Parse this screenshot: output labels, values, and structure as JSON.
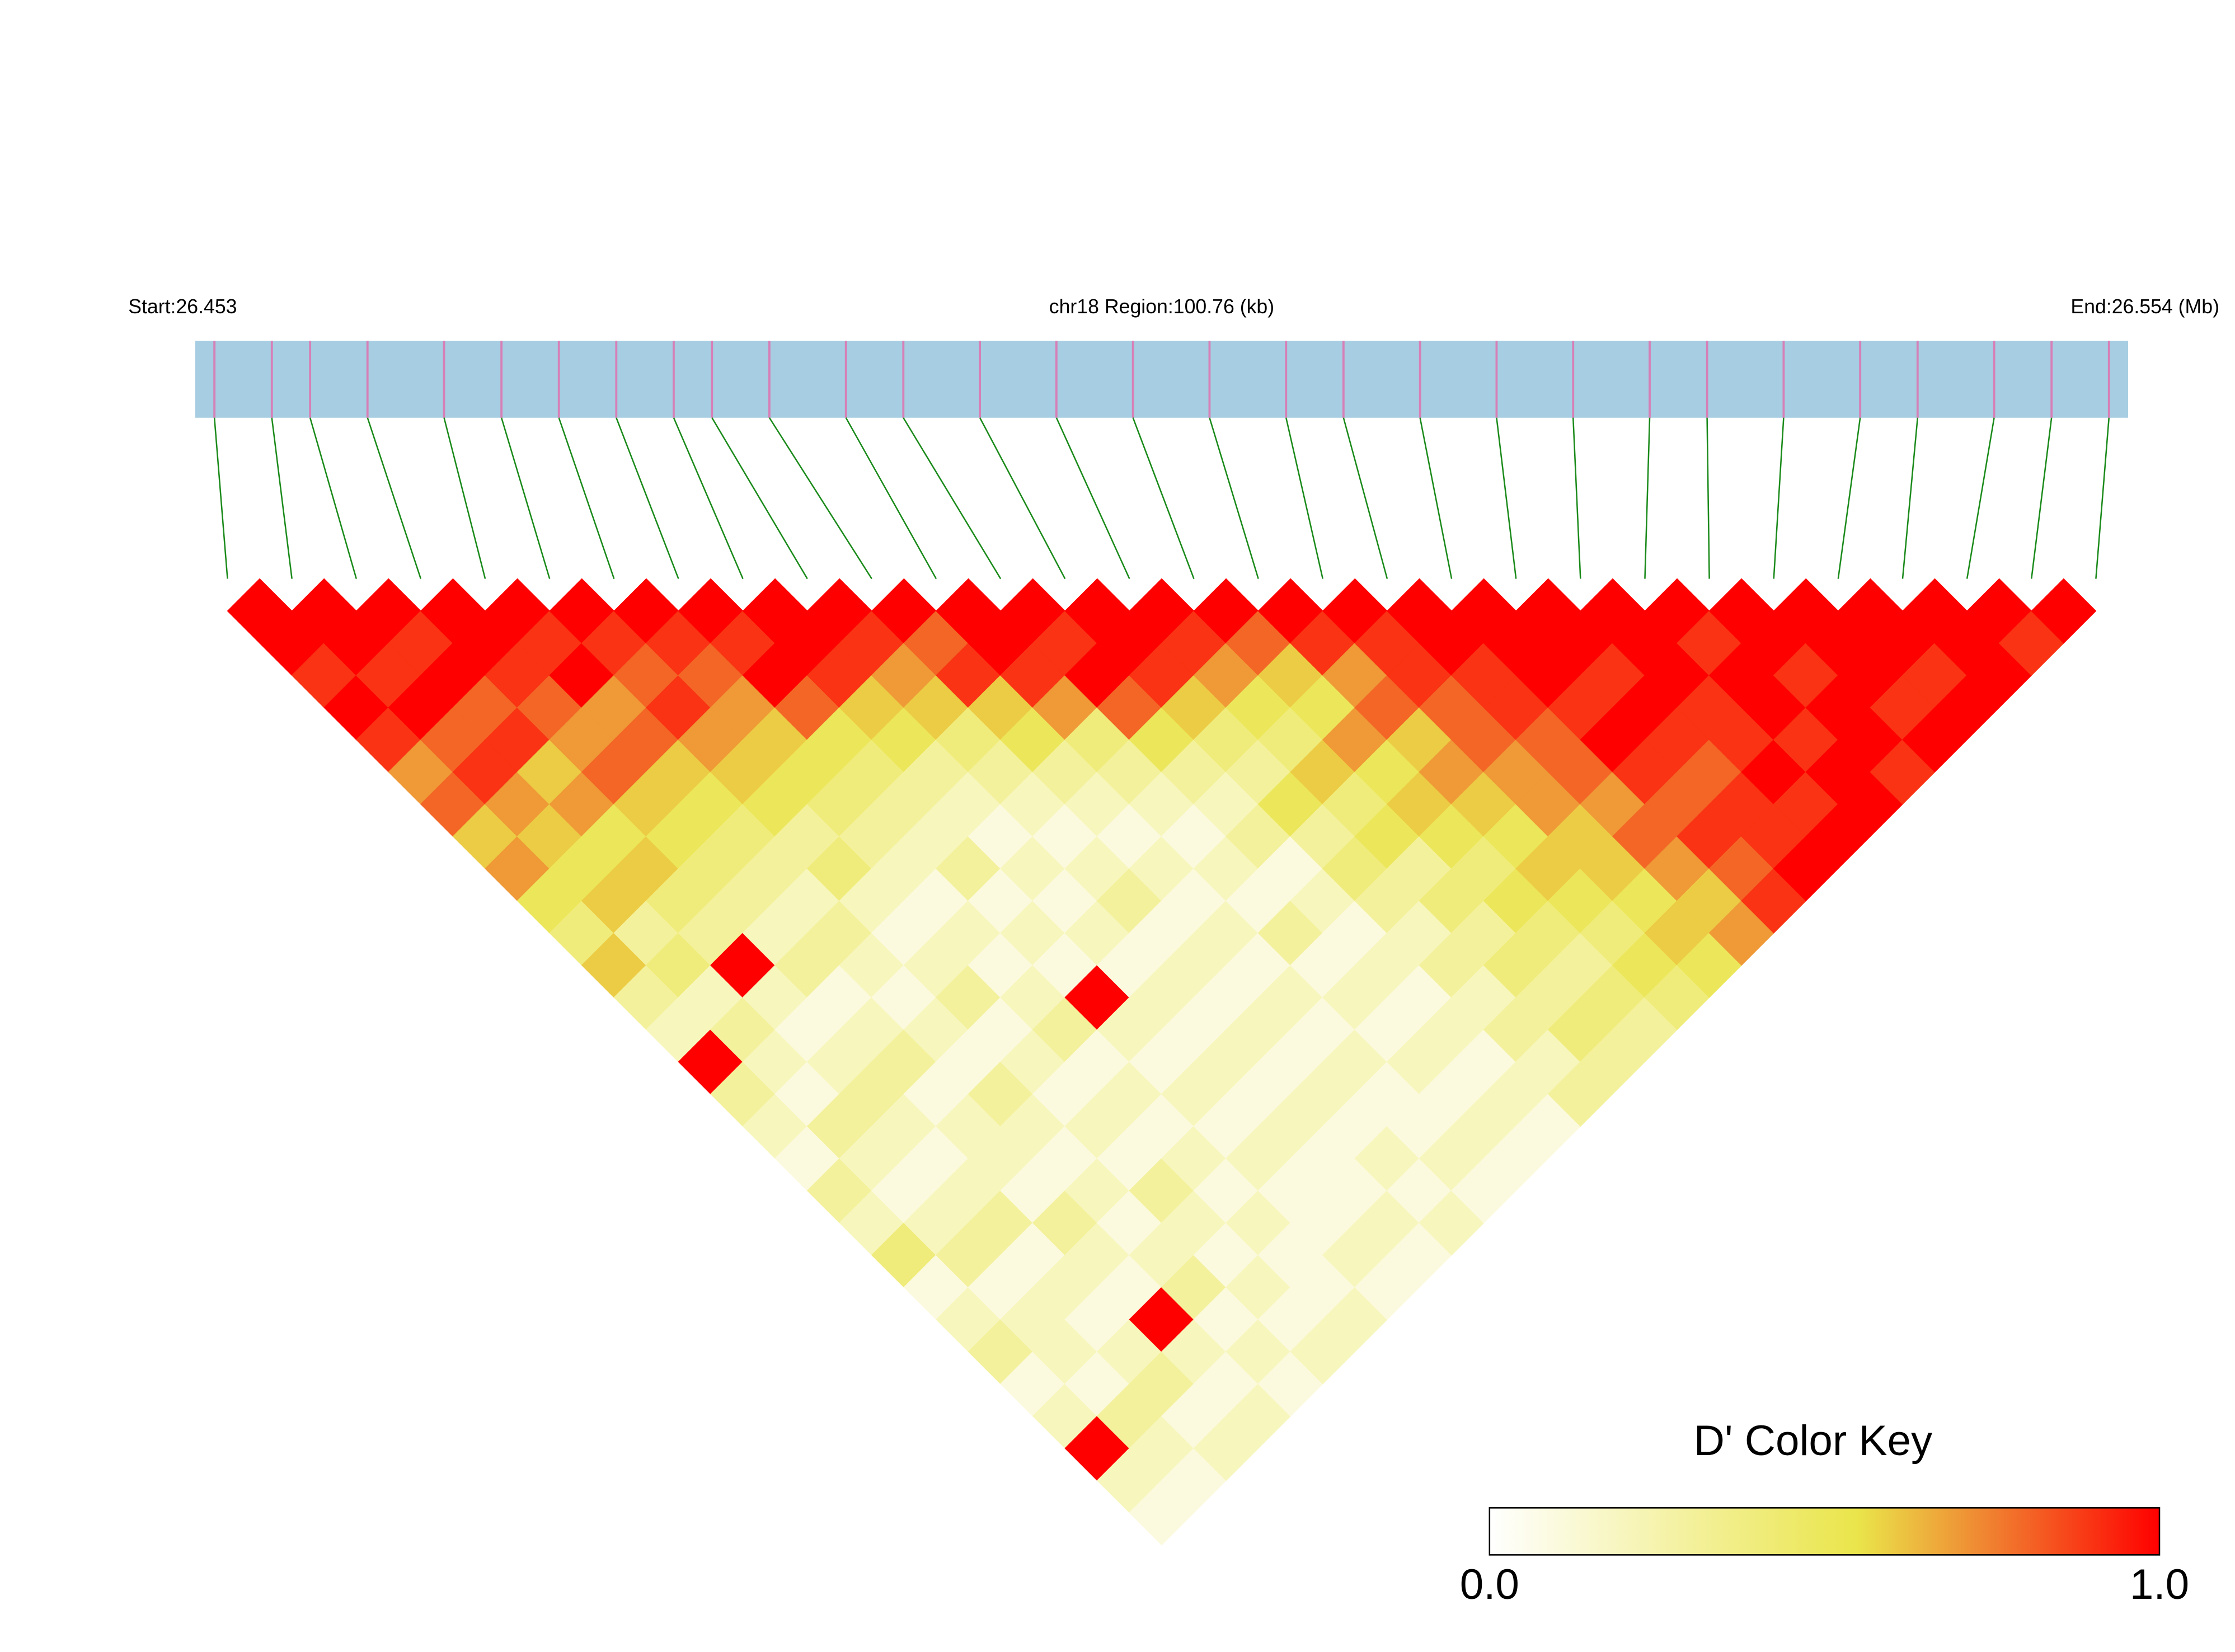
{
  "chart_data": {
    "type": "ld-heatmap",
    "start_label": "Start:26.453",
    "region_label": "chr18 Region:100.76 (kb)",
    "end_label": "End:26.554 (Mb)",
    "xlim": [
      26.453,
      26.554
    ],
    "snp_positions": [
      26.454,
      26.457,
      26.459,
      26.462,
      26.466,
      26.469,
      26.472,
      26.475,
      26.478,
      26.48,
      26.483,
      26.487,
      26.49,
      26.494,
      26.498,
      26.502,
      26.506,
      26.51,
      26.513,
      26.517,
      26.521,
      26.525,
      26.529,
      26.532,
      26.536,
      26.54,
      26.543,
      26.547,
      26.55,
      26.553
    ],
    "bar_color": "#a6cde1",
    "marker_color": "#d77fb7",
    "link_color": "#1a8a1a",
    "ld_matrix": [
      [
        1,
        1,
        0.9,
        1,
        0.9,
        0.7,
        0.8,
        0.6,
        0.7,
        0.5,
        0.4,
        0.6,
        0.3,
        0.2,
        1,
        0.3,
        0.2,
        0.1,
        0.3,
        0.2,
        0.4,
        0.1,
        0.2,
        0.3,
        0.1,
        0.2,
        1,
        0.2,
        0.1
      ],
      [
        1,
        1,
        0.9,
        1,
        0.8,
        0.9,
        0.7,
        0.6,
        0.5,
        0.6,
        0.3,
        0.4,
        0.2,
        0.3,
        0.2,
        0.1,
        0.3,
        0.2,
        0.1,
        0.2,
        0.3,
        0.1,
        0.2,
        0.2,
        0.1,
        0.3,
        0.2,
        0.1
      ],
      [
        1,
        0.9,
        1,
        0.8,
        0.9,
        0.6,
        0.7,
        0.5,
        0.6,
        0.4,
        0.3,
        1,
        0.2,
        0.1,
        0.2,
        0.3,
        0.2,
        0.1,
        0.2,
        0.3,
        0.1,
        0.2,
        0.1,
        0.2,
        0.3,
        0.1,
        0.2
      ],
      [
        1,
        1,
        0.9,
        0.8,
        0.7,
        0.8,
        0.6,
        0.5,
        0.4,
        0.3,
        0.2,
        0.3,
        0.1,
        0.2,
        0.3,
        0.1,
        0.2,
        0.2,
        0.1,
        0.3,
        0.2,
        0.1,
        1,
        0.2,
        0.1,
        0.2
      ],
      [
        1,
        0.9,
        1,
        0.7,
        0.8,
        0.6,
        0.5,
        0.4,
        0.3,
        0.2,
        0.3,
        0.2,
        0.1,
        0.2,
        0.1,
        0.3,
        0.2,
        0.1,
        0.2,
        0.1,
        0.2,
        0.3,
        0.1,
        0.2,
        0.1
      ],
      [
        1,
        0.9,
        0.8,
        0.9,
        0.7,
        0.6,
        0.5,
        0.3,
        0.4,
        0.2,
        0.1,
        0.2,
        0.3,
        0.1,
        0.2,
        0.1,
        0.2,
        0.1,
        0.3,
        0.2,
        0.1,
        0.2,
        0.1,
        0.2
      ],
      [
        1,
        0.9,
        0.8,
        0.7,
        0.6,
        0.5,
        0.4,
        0.3,
        0.2,
        0.1,
        0.2,
        0.1,
        0.2,
        0.3,
        0.1,
        0.2,
        0.1,
        0.2,
        0.1,
        0.2,
        0.1,
        0.1,
        0.2
      ],
      [
        1,
        0.9,
        1,
        0.8,
        0.5,
        0.4,
        0.3,
        0.2,
        0.3,
        0.1,
        0.2,
        0.1,
        1,
        0.2,
        0.1,
        0.2,
        0.1,
        0.2,
        0.1,
        0.1,
        0.2,
        0.1
      ],
      [
        1,
        1,
        0.9,
        0.6,
        0.5,
        0.3,
        0.2,
        0.1,
        0.2,
        0.1,
        0.2,
        0.1,
        0.2,
        0.1,
        0.2,
        0.1,
        0.2,
        0.1,
        0.1,
        0.2,
        0.1
      ],
      [
        1,
        0.9,
        0.7,
        0.6,
        0.4,
        0.3,
        0.2,
        0.1,
        0.2,
        0.3,
        0.1,
        0.2,
        0.1,
        0.2,
        0.1,
        0.2,
        0.1,
        0.2,
        0.1,
        0.2
      ],
      [
        1,
        0.8,
        0.9,
        0.6,
        0.5,
        0.3,
        0.2,
        0.1,
        0.2,
        0.1,
        0.2,
        0.1,
        0.2,
        0.1,
        0.2,
        0.1,
        0.1,
        0.2,
        0.1
      ],
      [
        1,
        1,
        0.9,
        0.7,
        0.4,
        0.3,
        0.2,
        0.1,
        0.2,
        0.1,
        0.3,
        0.1,
        0.2,
        0.1,
        0.2,
        0.1,
        0.2,
        0.1
      ],
      [
        1,
        0.9,
        1,
        0.8,
        0.5,
        0.3,
        0.2,
        0.3,
        0.1,
        0.2,
        0.1,
        0.2,
        0.1,
        0.2,
        0.1,
        0.2,
        0.1
      ],
      [
        1,
        1,
        0.9,
        0.6,
        0.4,
        0.3,
        0.5,
        0.3,
        0.4,
        0.3,
        0.2,
        0.3,
        0.2,
        0.3,
        0.2,
        0.3
      ],
      [
        1,
        0.9,
        0.7,
        0.5,
        0.4,
        0.6,
        0.4,
        0.5,
        0.3,
        0.4,
        0.3,
        0.4,
        0.3,
        0.4,
        0.3
      ],
      [
        1,
        0.8,
        0.6,
        0.5,
        0.7,
        0.5,
        0.6,
        0.5,
        0.4,
        0.5,
        0.4,
        0.3,
        0.4,
        0.3
      ],
      [
        1,
        0.9,
        0.7,
        0.8,
        0.6,
        0.7,
        0.6,
        0.5,
        0.6,
        0.5,
        0.4,
        0.5,
        0.4
      ],
      [
        1,
        0.9,
        0.9,
        0.8,
        0.8,
        0.7,
        0.7,
        0.6,
        0.6,
        0.5,
        0.6,
        0.5
      ],
      [
        1,
        1,
        0.9,
        0.9,
        0.8,
        0.8,
        0.7,
        0.8,
        0.7,
        0.6,
        0.7
      ],
      [
        1,
        1,
        1,
        0.9,
        1,
        0.9,
        0.8,
        0.9,
        0.8,
        0.9
      ],
      [
        1,
        1,
        0.9,
        1,
        0.9,
        0.8,
        0.9,
        0.9,
        1
      ],
      [
        1,
        1,
        1,
        0.9,
        0.9,
        1,
        0.9,
        1
      ],
      [
        1,
        0.9,
        1,
        1,
        0.9,
        1,
        1
      ],
      [
        1,
        1,
        0.9,
        1,
        1,
        0.9
      ],
      [
        1,
        1,
        1,
        0.9,
        1
      ],
      [
        1,
        1,
        0.9,
        1
      ],
      [
        1,
        1,
        1
      ],
      [
        1,
        0.9
      ],
      [
        1
      ]
    ],
    "colorscale": [
      [
        0,
        "#ffffff"
      ],
      [
        0.55,
        "#eae54a"
      ],
      [
        0.75,
        "#f08030"
      ],
      [
        1,
        "#ff0000"
      ]
    ],
    "legend_title": "D' Color Key",
    "legend_ticks": [
      {
        "value": 0,
        "label": "0.0"
      },
      {
        "value": 1,
        "label": "1.0"
      }
    ]
  }
}
